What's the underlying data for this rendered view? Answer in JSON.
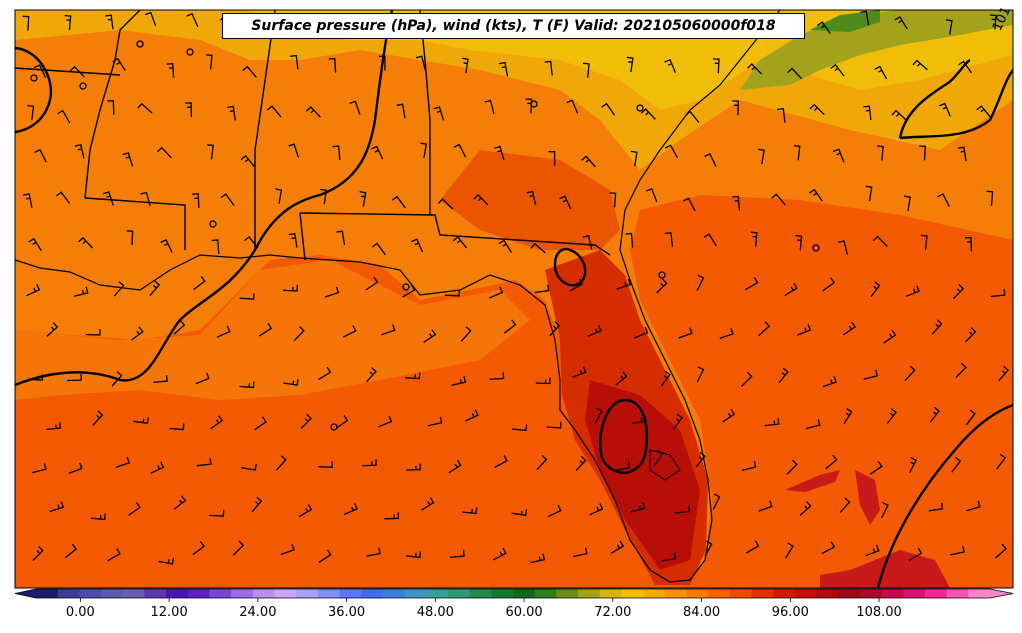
{
  "title": "Surface pressure (hPa), wind (kts), T (F) Valid: 202105060000f018",
  "contour_labels": [
    "101"
  ],
  "colorbar": {
    "ticks": [
      "0.00",
      "12.00",
      "24.00",
      "36.00",
      "48.00",
      "60.00",
      "72.00",
      "84.00",
      "96.00",
      "108.00"
    ],
    "tick_values": [
      0,
      12,
      24,
      36,
      48,
      60,
      72,
      84,
      96,
      108
    ],
    "min": -6,
    "max": 123,
    "extend": "both",
    "colors": [
      "#1c1c6e",
      "#3c3c9a",
      "#4b4bb0",
      "#5a5ab0",
      "#6a5bb3",
      "#5a39b0",
      "#4a16b3",
      "#5a20c0",
      "#7a45d6",
      "#9a6ae8",
      "#b88ef2",
      "#c9a6f8",
      "#a6a0f8",
      "#7f8ef8",
      "#5a77f5",
      "#3e6ef0",
      "#3a80e0",
      "#3f93c8",
      "#34a09a",
      "#2b9a72",
      "#1f8a4a",
      "#117a30",
      "#0e6a1e",
      "#2f7e1a",
      "#6a8f16",
      "#a2a21c",
      "#d6b414",
      "#f0c000",
      "#f4aa00",
      "#f59400",
      "#f77c00",
      "#f66400",
      "#f04c00",
      "#e43000",
      "#d61800",
      "#c41000",
      "#b00a0a",
      "#9a0a14",
      "#aa0a2a",
      "#c40a4a",
      "#dc1070",
      "#ee2a92",
      "#f456b0",
      "#f887c8"
    ]
  },
  "colors": {
    "ocean_base": "#f45a04",
    "land_base": "#f47e08",
    "north_land": "#f0be08",
    "cool_ne": "#a2a21c",
    "hot_peninsula": "#d62d00",
    "hottest": "#b80e08",
    "contour": "#000000"
  }
}
